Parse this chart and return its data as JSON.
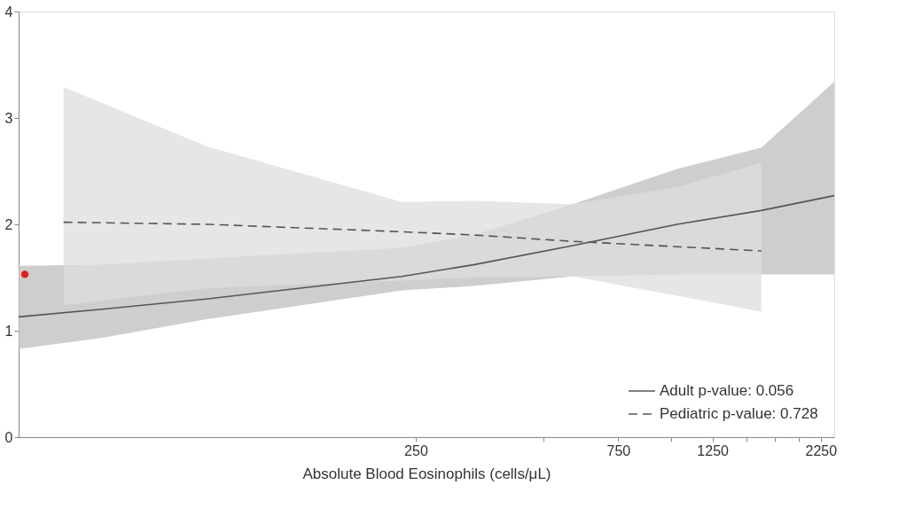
{
  "chart_data": {
    "type": "line",
    "xlabel": "Absolute Blood Eosinophils (cells/μL)",
    "xlim": [
      29,
      2420
    ],
    "ylim": [
      0,
      4
    ],
    "xticks": [
      250,
      {
        "value": 500,
        "label": null
      },
      750,
      {
        "value": 1000,
        "label": null
      },
      1250,
      {
        "value": 1500,
        "label": null
      },
      {
        "value": 1750,
        "label": null
      },
      {
        "value": 2000,
        "label": null
      },
      2250
    ],
    "yticks": [
      0,
      1,
      2,
      3,
      4
    ],
    "log": "x",
    "grid": false,
    "legend": "bottom right",
    "series": [
      {
        "name": "Adult p-value: 0.056",
        "color": "#555555",
        "line_style": "solid",
        "x": [
          29,
          45,
          81,
          232,
          342,
          586,
          1032,
          1630,
          2420
        ],
        "values": [
          1.13,
          1.2,
          1.3,
          1.51,
          1.62,
          1.8,
          2.0,
          2.13,
          2.27
        ],
        "lower": [
          0.83,
          0.93,
          1.11,
          1.38,
          1.42,
          1.51,
          1.53,
          1.53,
          1.53
        ],
        "upper": [
          1.61,
          1.62,
          1.68,
          1.78,
          1.9,
          2.19,
          2.52,
          2.72,
          3.34
        ]
      },
      {
        "name": "Pediatric p-value: 0.728",
        "color": "#555555",
        "line_style": "dashed",
        "x": [
          37,
          81,
          232,
          342,
          586,
          1032,
          1630
        ],
        "values": [
          2.02,
          2.0,
          1.93,
          1.9,
          1.84,
          1.79,
          1.75
        ],
        "lower": [
          1.24,
          1.4,
          1.47,
          1.5,
          1.51,
          1.33,
          1.18
        ],
        "upper": [
          3.29,
          2.73,
          2.21,
          2.22,
          2.19,
          2.35,
          2.58
        ]
      },
      {
        "type": "scatter",
        "color": "#e02020",
        "x": [
          30
        ],
        "values": [
          1.53
        ]
      }
    ]
  }
}
